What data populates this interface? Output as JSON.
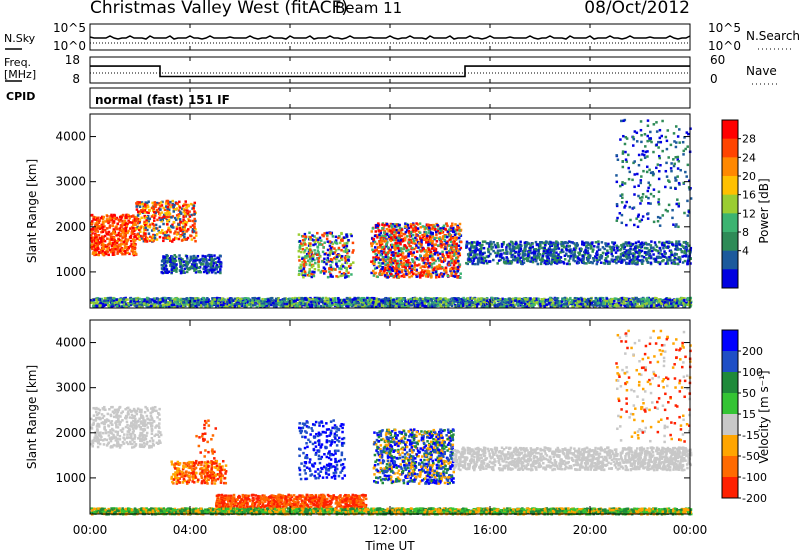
{
  "header": {
    "title": "Christmas Valley West (fitACF)",
    "beam": "Beam 11",
    "date": "08/Oct/2012"
  },
  "noise_panel": {
    "left_label": "N.Sky",
    "left_tick_top": "10^5",
    "left_tick_bottom": "10^0",
    "right_tick_top": "10^5",
    "right_tick_bottom": "10^0",
    "right_label": "N.Search"
  },
  "freq_panel": {
    "left_label_1": "Freq.",
    "left_label_2": "[MHz]",
    "left_tick_top": "18",
    "left_tick_bottom": "8",
    "right_tick_top": "60",
    "right_tick_bottom": "0",
    "right_label": "Nave",
    "cpid_label": "CPID",
    "cpid_text": "normal (fast) 151 IF",
    "freq_steps": [
      {
        "start_hour": 0,
        "end_hour": 2.8,
        "mhz": 14.5
      },
      {
        "start_hour": 2.8,
        "end_hour": 15.0,
        "mhz": 10.5
      },
      {
        "start_hour": 15.0,
        "end_hour": 24,
        "mhz": 14.5
      }
    ]
  },
  "power_panel": {
    "ylabel": "Slant Range [km]",
    "colorbar_title": "Power [dB]",
    "colorbar_ticks": [
      "28",
      "24",
      "20",
      "16",
      "12",
      "8",
      "4"
    ],
    "colors": [
      "#ff0000",
      "#ff4400",
      "#ff8800",
      "#ffc000",
      "#9acd32",
      "#3cb371",
      "#2e8b57",
      "#1c5a9c",
      "#0000e0"
    ]
  },
  "velocity_panel": {
    "ylabel": "Slant Range [km]",
    "colorbar_title": "Velocity [m s⁻¹]",
    "colorbar_ticks": [
      "200",
      "100",
      "50",
      "15",
      "-15",
      "-50",
      "-100",
      "-200"
    ],
    "colors": [
      "#0000ff",
      "#1f4fc6",
      "#1f8a3a",
      "#34c434",
      "#c8c8c8",
      "#ffa500",
      "#ff6a00",
      "#ff2000"
    ]
  },
  "chart_data": {
    "type": "heatmap",
    "x_ticks": [
      "00:00",
      "04:00",
      "08:00",
      "12:00",
      "16:00",
      "20:00",
      "00:00"
    ],
    "xlabel": "Time UT",
    "xlim": [
      0,
      24
    ],
    "ylim": [
      200,
      4500
    ],
    "y_ticks": [
      "1000",
      "2000",
      "3000",
      "4000"
    ]
  }
}
